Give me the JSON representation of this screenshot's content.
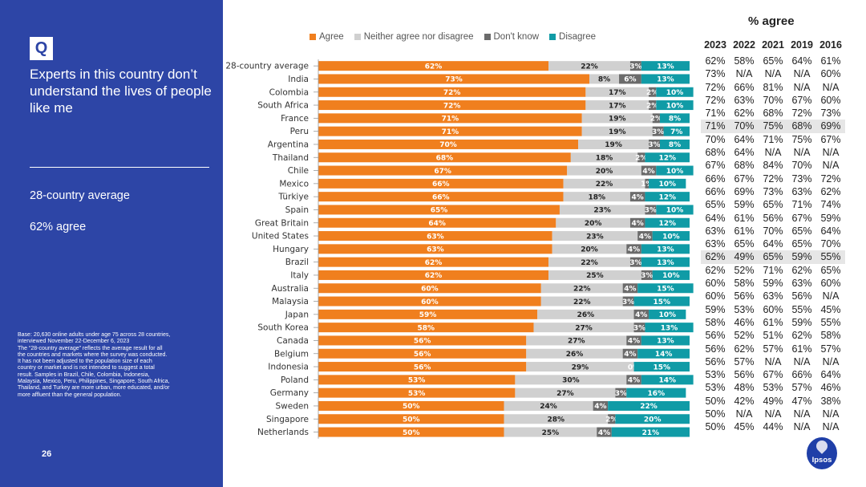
{
  "left_panel": {
    "badge": "Q",
    "question": "Experts in this country don’t understand the lives of people like me",
    "avg_label": "28-country average",
    "avg_value": "62% agree",
    "footnote": [
      "Base: 20,630 online adults under age 75 across 28 countries,",
      "interviewed November 22-December 6, 2023",
      "The “28-country average” reflects the average result for all",
      "the countries and markets where the survey was conducted.",
      "It has not been adjusted to the population size of each",
      "country or market and is not intended to suggest a total",
      "result. Samples in Brazil, Chile, Colombia, Indonesia,",
      "Malaysia, Mexico, Peru, Philippines, Singapore, South Africa,",
      "Thailand, and Turkey are more urban, more educated, and/or",
      "more affluent than the general population."
    ],
    "page_number": "26"
  },
  "table": {
    "title": "% agree",
    "years": [
      "2023",
      "2022",
      "2021",
      "2019",
      "2016"
    ],
    "rows": [
      [
        "62%",
        "58%",
        "65%",
        "64%",
        "61%"
      ],
      [
        "73%",
        "N/A",
        "N/A",
        "N/A",
        "60%"
      ],
      [
        "72%",
        "66%",
        "81%",
        "N/A",
        "N/A"
      ],
      [
        "72%",
        "63%",
        "70%",
        "67%",
        "60%"
      ],
      [
        "71%",
        "62%",
        "68%",
        "72%",
        "73%"
      ],
      [
        "71%",
        "70%",
        "75%",
        "68%",
        "69%"
      ],
      [
        "70%",
        "64%",
        "71%",
        "75%",
        "67%"
      ],
      [
        "68%",
        "64%",
        "N/A",
        "N/A",
        "N/A"
      ],
      [
        "67%",
        "68%",
        "84%",
        "70%",
        "N/A"
      ],
      [
        "66%",
        "67%",
        "72%",
        "73%",
        "72%"
      ],
      [
        "66%",
        "69%",
        "73%",
        "63%",
        "62%"
      ],
      [
        "65%",
        "59%",
        "65%",
        "71%",
        "74%"
      ],
      [
        "64%",
        "61%",
        "56%",
        "67%",
        "59%"
      ],
      [
        "63%",
        "61%",
        "70%",
        "65%",
        "64%"
      ],
      [
        "63%",
        "65%",
        "64%",
        "65%",
        "70%"
      ],
      [
        "62%",
        "49%",
        "65%",
        "59%",
        "55%"
      ],
      [
        "62%",
        "52%",
        "71%",
        "62%",
        "65%"
      ],
      [
        "60%",
        "58%",
        "59%",
        "63%",
        "60%"
      ],
      [
        "60%",
        "56%",
        "63%",
        "56%",
        "N/A"
      ],
      [
        "59%",
        "53%",
        "60%",
        "55%",
        "45%"
      ],
      [
        "58%",
        "46%",
        "61%",
        "59%",
        "55%"
      ],
      [
        "56%",
        "52%",
        "51%",
        "62%",
        "58%"
      ],
      [
        "56%",
        "62%",
        "57%",
        "61%",
        "57%"
      ],
      [
        "56%",
        "57%",
        "N/A",
        "N/A",
        "N/A"
      ],
      [
        "53%",
        "56%",
        "67%",
        "66%",
        "64%"
      ],
      [
        "53%",
        "48%",
        "53%",
        "57%",
        "46%"
      ],
      [
        "50%",
        "42%",
        "49%",
        "47%",
        "38%"
      ],
      [
        "50%",
        "N/A",
        "N/A",
        "N/A",
        "N/A"
      ],
      [
        "50%",
        "45%",
        "44%",
        "N/A",
        "N/A"
      ]
    ]
  },
  "logo": {
    "text": "Ipsos"
  },
  "chart_data": {
    "type": "bar",
    "orientation": "horizontal-stacked-100",
    "legend_position": "top",
    "categories": [
      "28-country average",
      "India",
      "Colombia",
      "South Africa",
      "France",
      "Peru",
      "Argentina",
      "Thailand",
      "Chile",
      "Mexico",
      "Türkiye",
      "Spain",
      "Great Britain",
      "United States",
      "Hungary",
      "Brazil",
      "Italy",
      "Australia",
      "Malaysia",
      "Japan",
      "South Korea",
      "Canada",
      "Belgium",
      "Indonesia",
      "Poland",
      "Germany",
      "Sweden",
      "Singapore",
      "Netherlands"
    ],
    "series": [
      {
        "name": "Agree",
        "color": "#f07f1e",
        "label_color": "#ffffff",
        "values": [
          62,
          73,
          72,
          72,
          71,
          71,
          70,
          68,
          67,
          66,
          66,
          65,
          64,
          63,
          63,
          62,
          62,
          60,
          60,
          59,
          58,
          56,
          56,
          56,
          53,
          53,
          50,
          50,
          50
        ]
      },
      {
        "name": "Neither agree nor disagree",
        "color": "#d0d0d0",
        "label_color": "#222222",
        "values": [
          22,
          8,
          17,
          17,
          19,
          19,
          19,
          18,
          20,
          22,
          18,
          23,
          20,
          23,
          20,
          22,
          25,
          22,
          22,
          26,
          27,
          27,
          26,
          29,
          30,
          27,
          24,
          28,
          25
        ]
      },
      {
        "name": "Don't know",
        "color": "#6b6b6b",
        "label_color": "#ffffff",
        "values": [
          3,
          6,
          2,
          2,
          2,
          3,
          3,
          2,
          4,
          1,
          4,
          3,
          4,
          4,
          4,
          3,
          3,
          4,
          3,
          4,
          3,
          4,
          4,
          0,
          4,
          3,
          4,
          2,
          4
        ]
      },
      {
        "name": "Disagree",
        "color": "#109ba6",
        "label_color": "#ffffff",
        "values": [
          13,
          13,
          10,
          10,
          8,
          7,
          8,
          12,
          10,
          10,
          12,
          10,
          12,
          10,
          13,
          13,
          10,
          15,
          15,
          10,
          13,
          13,
          14,
          15,
          14,
          16,
          22,
          20,
          21
        ]
      }
    ],
    "xlim": [
      0,
      100
    ],
    "title": "",
    "xlabel": "",
    "ylabel": ""
  }
}
